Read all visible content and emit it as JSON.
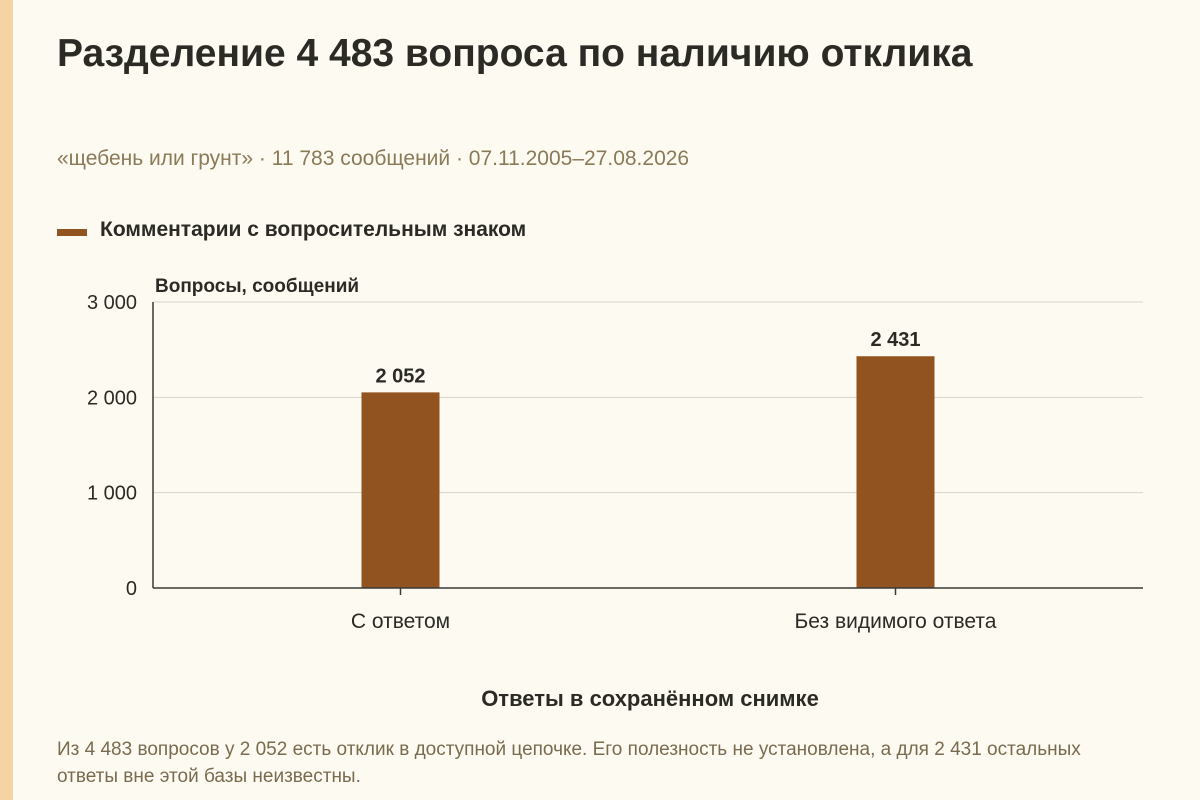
{
  "title": "Разделение 4 483 вопроса по наличию отклика",
  "subtitle": "«щебень или грунт» · 11 783 сообщений · 07.11.2005–27.08.2026",
  "legend": {
    "label": "Комментарии с вопросительным знаком",
    "color": "#91531f"
  },
  "note": "Из 4 483 вопросов у 2 052 есть отклик в доступной цепочке. Его полезность не установлена, а для 2 431 остальных ответы вне этой базы неизвестны.",
  "colors": {
    "background": "#fdfaf2",
    "accent_strip": "#f5d3a3",
    "bar": "#91531f",
    "gridline": "#d8d4c8",
    "text_muted": "#8a7a57"
  },
  "chart_data": {
    "type": "bar",
    "categories": [
      "С ответом",
      "Без видимого ответа"
    ],
    "series": [
      {
        "name": "Комментарии с вопросительным знаком",
        "values": [
          2052,
          2431
        ],
        "value_labels": [
          "2 052",
          "2 431"
        ]
      }
    ],
    "ylabel": "Вопросы, сообщений",
    "xlabel": "Ответы в сохранённом снимке",
    "ylim": [
      0,
      3000
    ],
    "yticks": [
      0,
      1000,
      2000,
      3000
    ],
    "ytick_labels": [
      "0",
      "1 000",
      "2 000",
      "3 000"
    ],
    "grid": true,
    "legend_position": "top-left"
  }
}
